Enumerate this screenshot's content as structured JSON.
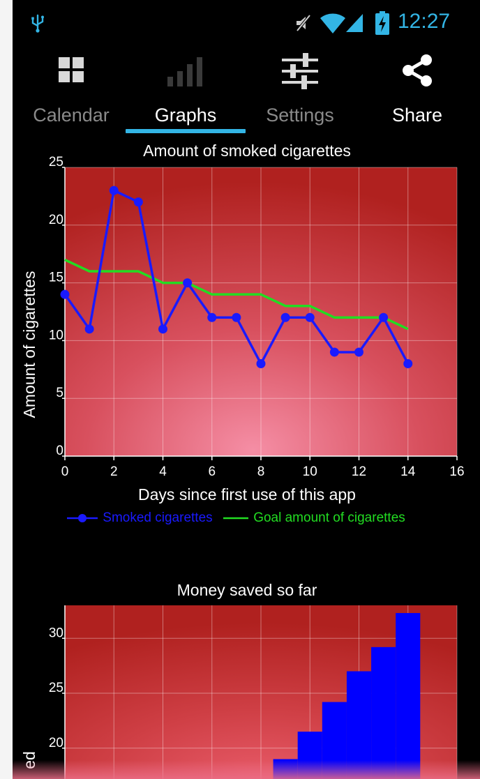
{
  "status_bar": {
    "time": "12:27",
    "icons": [
      "usb-icon",
      "mute-icon",
      "wifi-icon",
      "signal-icon",
      "battery-charging-icon"
    ],
    "accent_color": "#33b5e5"
  },
  "tabs": [
    {
      "label": "Calendar",
      "icon": "grid-icon",
      "active": false
    },
    {
      "label": "Graphs",
      "icon": "bars-icon",
      "active": true
    },
    {
      "label": "Settings",
      "icon": "sliders-icon",
      "active": false
    },
    {
      "label": "Share",
      "icon": "share-icon",
      "active": false
    }
  ],
  "chart_data": [
    {
      "type": "line",
      "title": "Amount of smoked cigarettes",
      "xlabel": "Days since first use of this app",
      "ylabel": "Amount of cigarettes",
      "xlim": [
        0,
        16
      ],
      "ylim": [
        0,
        25
      ],
      "xticks": [
        0,
        2,
        4,
        6,
        8,
        10,
        12,
        14,
        16
      ],
      "yticks": [
        0,
        5,
        10,
        15,
        20,
        25
      ],
      "grid": true,
      "legend_position": "bottom",
      "series": [
        {
          "name": "Smoked cigarettes",
          "color": "#1a1aff",
          "markers": true,
          "points": [
            {
              "x": 0,
              "y": 14
            },
            {
              "x": 1,
              "y": 11
            },
            {
              "x": 2,
              "y": 23
            },
            {
              "x": 3,
              "y": 22
            },
            {
              "x": 4,
              "y": 11
            },
            {
              "x": 5,
              "y": 15
            },
            {
              "x": 6,
              "y": 12
            },
            {
              "x": 7,
              "y": 12
            },
            {
              "x": 8,
              "y": 8
            },
            {
              "x": 9,
              "y": 12
            },
            {
              "x": 10,
              "y": 12
            },
            {
              "x": 11,
              "y": 9
            },
            {
              "x": 12,
              "y": 9
            },
            {
              "x": 13,
              "y": 12
            },
            {
              "x": 14,
              "y": 8
            }
          ]
        },
        {
          "name": "Goal amount of cigarettes",
          "color": "#22dd22",
          "markers": false,
          "points": [
            {
              "x": 0,
              "y": 17
            },
            {
              "x": 1,
              "y": 16
            },
            {
              "x": 2,
              "y": 16
            },
            {
              "x": 3,
              "y": 16
            },
            {
              "x": 4,
              "y": 15
            },
            {
              "x": 5,
              "y": 15
            },
            {
              "x": 6,
              "y": 14
            },
            {
              "x": 7,
              "y": 14
            },
            {
              "x": 8,
              "y": 14
            },
            {
              "x": 9,
              "y": 13
            },
            {
              "x": 10,
              "y": 13
            },
            {
              "x": 11,
              "y": 12
            },
            {
              "x": 12,
              "y": 12
            },
            {
              "x": 13,
              "y": 12
            },
            {
              "x": 14,
              "y": 11
            }
          ]
        }
      ]
    },
    {
      "type": "bar",
      "title": "Money saved so far",
      "ylabel": "ed",
      "xlim": [
        0,
        16
      ],
      "ylim": [
        17,
        33
      ],
      "yticks": [
        20,
        25,
        30
      ],
      "grid": true,
      "bar_color": "#0000ff",
      "bars": [
        {
          "x_start": 8.5,
          "x_end": 9.5,
          "value": 19.0
        },
        {
          "x_start": 9.5,
          "x_end": 10.5,
          "value": 21.5
        },
        {
          "x_start": 10.5,
          "x_end": 11.5,
          "value": 24.2
        },
        {
          "x_start": 11.5,
          "x_end": 12.5,
          "value": 27.0
        },
        {
          "x_start": 12.5,
          "x_end": 13.5,
          "value": 29.2
        },
        {
          "x_start": 13.5,
          "x_end": 14.5,
          "value": 32.3
        }
      ]
    }
  ]
}
